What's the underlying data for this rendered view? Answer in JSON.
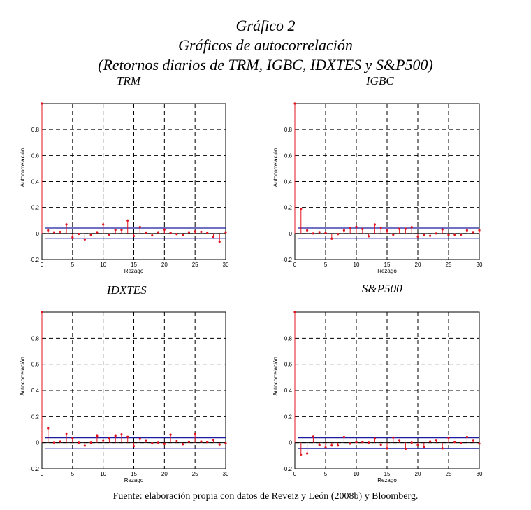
{
  "figure": {
    "number": "Gráfico 2",
    "title": "Gráficos de autocorrelación",
    "subtitle": "(Retornos diarios de TRM, IGBC, IDXTES y S&P500)",
    "source": "Fuente: elaboración propia con datos de Reveiz y León (2008b) y Bloomberg."
  },
  "colors": {
    "stem": "#e0141e",
    "band": "#1c1ca0",
    "grid": "#000000"
  },
  "chart_data": [
    {
      "type": "stem",
      "title": "TRM",
      "xlabel": "Rezago",
      "ylabel": "Autocorrelación",
      "xlim": [
        0,
        30
      ],
      "ylim": [
        -0.2,
        1
      ],
      "xticks": [
        0,
        5,
        10,
        15,
        20,
        25,
        30
      ],
      "yticks": [
        -0.2,
        0,
        0.2,
        0.4,
        0.6,
        0.8
      ],
      "grid": true,
      "confidence_band": [
        -0.04,
        0.042
      ],
      "values": [
        1,
        0.024,
        0.01,
        0.013,
        0.07,
        -0.03,
        -0.004,
        -0.046,
        -0.011,
        0.01,
        0.07,
        -0.01,
        0.028,
        0.028,
        0.1,
        -0.02,
        0.05,
        0.008,
        -0.015,
        0.01,
        0.03,
        0.005,
        -0.005,
        -0.013,
        0.01,
        0.016,
        0.013,
        0.004,
        -0.026,
        -0.063,
        0.01
      ]
    },
    {
      "type": "stem",
      "title": "IGBC",
      "xlabel": "Rezago",
      "ylabel": "Autocorrelación",
      "xlim": [
        0,
        30
      ],
      "ylim": [
        -0.2,
        1
      ],
      "xticks": [
        0,
        5,
        10,
        15,
        20,
        25,
        30
      ],
      "yticks": [
        -0.2,
        0,
        0.2,
        0.4,
        0.6,
        0.8
      ],
      "grid": true,
      "confidence_band": [
        -0.04,
        0.042
      ],
      "values": [
        1,
        0.19,
        0.024,
        0,
        0.011,
        0.004,
        -0.04,
        -0.005,
        0.024,
        0.042,
        0.051,
        0.035,
        -0.022,
        0.069,
        0.045,
        0.024,
        -0.009,
        0.036,
        0.036,
        0.049,
        -0.024,
        -0.013,
        -0.018,
        0,
        0.031,
        -0.011,
        -0.009,
        -0.009,
        0.024,
        0.011,
        0.025
      ]
    },
    {
      "type": "stem",
      "title": "IDXTES",
      "xlabel": "Rezago",
      "ylabel": "Autocorrelación",
      "xlim": [
        0,
        30
      ],
      "ylim": [
        -0.2,
        1
      ],
      "xticks": [
        0,
        5,
        10,
        15,
        20,
        25,
        30
      ],
      "yticks": [
        -0.2,
        0,
        0.2,
        0.4,
        0.6,
        0.8
      ],
      "grid": true,
      "confidence_band": [
        -0.043,
        0.038
      ],
      "values": [
        1,
        0.11,
        0,
        0.009,
        0.066,
        0.034,
        0,
        -0.023,
        0,
        0.052,
        0.014,
        0.032,
        0.052,
        0.064,
        0.045,
        -0.027,
        0.03,
        0.014,
        -0.005,
        0,
        -0.009,
        0.062,
        0.012,
        -0.012,
        0.007,
        0.066,
        0.009,
        0.005,
        0.02,
        -0.014,
        -0.005
      ]
    },
    {
      "type": "stem",
      "title": "S&P500",
      "xlabel": "Rezago",
      "ylabel": "Autocorrelación",
      "xlim": [
        0,
        30
      ],
      "ylim": [
        -0.2,
        1
      ],
      "xticks": [
        0,
        5,
        10,
        15,
        20,
        25,
        30
      ],
      "yticks": [
        -0.2,
        0,
        0.2,
        0.4,
        0.6,
        0.8
      ],
      "grid": true,
      "confidence_band": [
        -0.045,
        0.038
      ],
      "values": [
        1,
        -0.095,
        -0.082,
        0.047,
        -0.018,
        -0.038,
        -0.022,
        -0.022,
        0.044,
        -0.007,
        0.004,
        0.004,
        0,
        0.031,
        -0.015,
        -0.044,
        0.04,
        0.015,
        -0.047,
        0,
        -0.018,
        -0.036,
        0.009,
        0.016,
        -0.044,
        0.038,
        0.005,
        -0.004,
        0.044,
        0.015,
        -0.007
      ]
    }
  ]
}
